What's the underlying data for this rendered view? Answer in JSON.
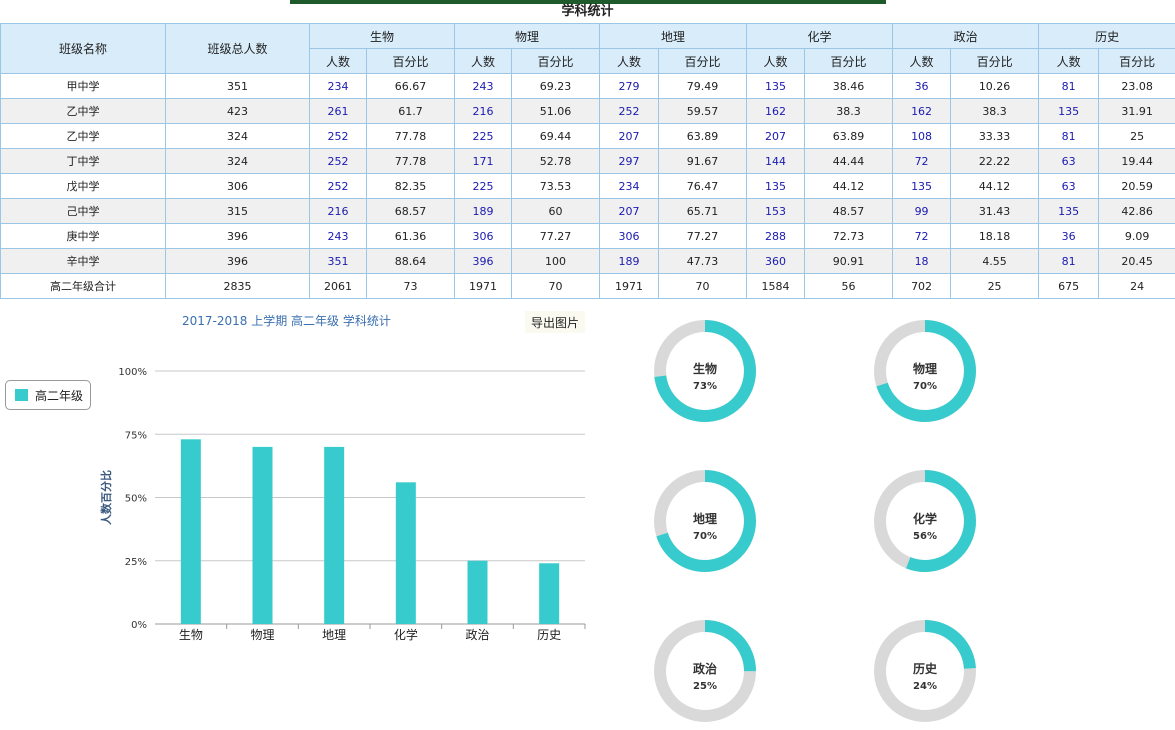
{
  "page": {
    "title": "学科统计"
  },
  "table": {
    "headers": {
      "class_name": "班级名称",
      "total": "班级总人数",
      "subjects": [
        "生物",
        "物理",
        "地理",
        "化学",
        "政治",
        "历史"
      ],
      "count": "人数",
      "percent": "百分比"
    },
    "rows": [
      {
        "name": "甲中学",
        "total": "351",
        "cells": [
          [
            "234",
            "66.67"
          ],
          [
            "243",
            "69.23"
          ],
          [
            "279",
            "79.49"
          ],
          [
            "135",
            "38.46"
          ],
          [
            "36",
            "10.26"
          ],
          [
            "81",
            "23.08"
          ]
        ]
      },
      {
        "name": "乙中学",
        "total": "423",
        "cells": [
          [
            "261",
            "61.7"
          ],
          [
            "216",
            "51.06"
          ],
          [
            "252",
            "59.57"
          ],
          [
            "162",
            "38.3"
          ],
          [
            "162",
            "38.3"
          ],
          [
            "135",
            "31.91"
          ]
        ]
      },
      {
        "name": "乙中学",
        "total": "324",
        "cells": [
          [
            "252",
            "77.78"
          ],
          [
            "225",
            "69.44"
          ],
          [
            "207",
            "63.89"
          ],
          [
            "207",
            "63.89"
          ],
          [
            "108",
            "33.33"
          ],
          [
            "81",
            "25"
          ]
        ]
      },
      {
        "name": "丁中学",
        "total": "324",
        "cells": [
          [
            "252",
            "77.78"
          ],
          [
            "171",
            "52.78"
          ],
          [
            "297",
            "91.67"
          ],
          [
            "144",
            "44.44"
          ],
          [
            "72",
            "22.22"
          ],
          [
            "63",
            "19.44"
          ]
        ]
      },
      {
        "name": "戊中学",
        "total": "306",
        "cells": [
          [
            "252",
            "82.35"
          ],
          [
            "225",
            "73.53"
          ],
          [
            "234",
            "76.47"
          ],
          [
            "135",
            "44.12"
          ],
          [
            "135",
            "44.12"
          ],
          [
            "63",
            "20.59"
          ]
        ]
      },
      {
        "name": "己中学",
        "total": "315",
        "cells": [
          [
            "216",
            "68.57"
          ],
          [
            "189",
            "60"
          ],
          [
            "207",
            "65.71"
          ],
          [
            "153",
            "48.57"
          ],
          [
            "99",
            "31.43"
          ],
          [
            "135",
            "42.86"
          ]
        ]
      },
      {
        "name": "庚中学",
        "total": "396",
        "cells": [
          [
            "243",
            "61.36"
          ],
          [
            "306",
            "77.27"
          ],
          [
            "306",
            "77.27"
          ],
          [
            "288",
            "72.73"
          ],
          [
            "72",
            "18.18"
          ],
          [
            "36",
            "9.09"
          ]
        ]
      },
      {
        "name": "辛中学",
        "total": "396",
        "cells": [
          [
            "351",
            "88.64"
          ],
          [
            "396",
            "100"
          ],
          [
            "189",
            "47.73"
          ],
          [
            "360",
            "90.91"
          ],
          [
            "18",
            "4.55"
          ],
          [
            "81",
            "20.45"
          ]
        ]
      }
    ],
    "total_row": {
      "name": "高二年级合计",
      "total": "2835",
      "cells": [
        [
          "2061",
          "73"
        ],
        [
          "1971",
          "70"
        ],
        [
          "1971",
          "70"
        ],
        [
          "1584",
          "56"
        ],
        [
          "702",
          "25"
        ],
        [
          "675",
          "24"
        ]
      ]
    }
  },
  "chart_header": {
    "title": "2017-2018 上学期 高二年级 学科统计",
    "export_label": "导出图片"
  },
  "chart_data": {
    "type": "bar",
    "categories": [
      "生物",
      "物理",
      "地理",
      "化学",
      "政治",
      "历史"
    ],
    "series": [
      {
        "name": "高二年级",
        "values": [
          73,
          70,
          70,
          56,
          25,
          24
        ],
        "color": "#38cbcd"
      }
    ],
    "ylabel": "人数百分比",
    "y_ticks": [
      "0%",
      "25%",
      "50%",
      "75%",
      "100%"
    ],
    "ylim": [
      0,
      100
    ],
    "legend": "left"
  },
  "donuts": [
    {
      "label": "生物",
      "value": 73,
      "text": "73%"
    },
    {
      "label": "物理",
      "value": 70,
      "text": "70%"
    },
    {
      "label": "地理",
      "value": 70,
      "text": "70%"
    },
    {
      "label": "化学",
      "value": 56,
      "text": "56%"
    },
    {
      "label": "政治",
      "value": 25,
      "text": "25%"
    },
    {
      "label": "历史",
      "value": 24,
      "text": "24%"
    }
  ],
  "colors": {
    "accent": "#38cbcd",
    "track": "#d9d9d9",
    "header_bg": "#d8ecfa"
  }
}
